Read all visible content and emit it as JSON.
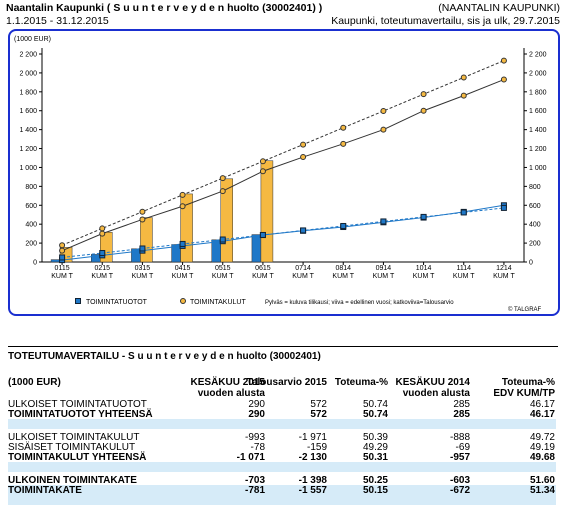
{
  "header": {
    "title": "Naantalin Kaupunki ( S u u n  t e r v e y d e n huolto (30002401) )",
    "org": "(NAANTALIN KAUPUNKI)",
    "period": "1.1.2015 - 31.12.2015",
    "report": "Kaupunki, toteutumavertailu, sis ja ulk, 29.7.2015"
  },
  "chart_data": {
    "type": "bar",
    "y_label": "(1000 EUR)",
    "categories": [
      "0115\nKUM T",
      "0215\nKUM T",
      "0315\nKUM T",
      "0415\nKUM T",
      "0515\nKUM T",
      "0615\nKUM T",
      "0714\nKUM T",
      "0814\nKUM T",
      "0914\nKUM T",
      "1014\nKUM T",
      "1114\nKUM T",
      "1214\nKUM T"
    ],
    "ylim": [
      0,
      2200
    ],
    "yticks": [
      0,
      200,
      400,
      600,
      800,
      {
        "value": 1000,
        "label": "1 000"
      },
      {
        "value": 1200,
        "label": "1 200"
      },
      {
        "value": 1400,
        "label": "1 400"
      },
      {
        "value": 1600,
        "label": "1 600"
      },
      {
        "value": 1800,
        "label": "1 800"
      },
      {
        "value": 2000,
        "label": "2 000"
      },
      {
        "value": 2200,
        "label": "2 200"
      }
    ],
    "series": [
      {
        "name": "TOIMINTATUOTOT",
        "type": "bar",
        "color": "#1f78c8",
        "marker": "square",
        "values": [
          25,
          80,
          140,
          185,
          235,
          290,
          null,
          null,
          null,
          null,
          null,
          null
        ]
      },
      {
        "name": "TOIMINTAKULUT",
        "type": "bar",
        "color": "#f5b942",
        "marker": "circle",
        "values": [
          155,
          315,
          470,
          720,
          880,
          1071,
          null,
          null,
          null,
          null,
          null,
          null
        ]
      },
      {
        "type": "line",
        "color": "#1f78c8",
        "marker": "square",
        "dash": false,
        "values": [
          20,
          70,
          120,
          170,
          220,
          285,
          330,
          370,
          420,
          470,
          530,
          600
        ]
      },
      {
        "type": "line",
        "color": "#333333",
        "marker": "circle",
        "dash": false,
        "values": [
          120,
          300,
          450,
          590,
          750,
          960,
          1110,
          1250,
          1400,
          1600,
          1760,
          1930
        ]
      },
      {
        "type": "line",
        "color": "#1f78c8",
        "marker": "square",
        "dash": true,
        "values": [
          48,
          95,
          143,
          191,
          238,
          286,
          334,
          381,
          429,
          477,
          524,
          572
        ]
      },
      {
        "type": "line",
        "color": "#333333",
        "marker": "circle",
        "dash": true,
        "values": [
          177,
          355,
          532,
          710,
          887,
          1065,
          1242,
          1420,
          1597,
          1775,
          1952,
          2130
        ]
      }
    ],
    "note": "Pylväs = kuluva tilikausi; viiva = edellinen vuosi; katkoviiva=Talousarvio",
    "credit": "© TALGRAF"
  },
  "table": {
    "title": "TOTEUTUMAVERTAILU - S u u n  t e r v e y d e n huolto (30002401)",
    "columns": [
      "(1000 EUR)",
      "KESÄKUU 2015\nvuoden alusta",
      "Talousarvio 2015",
      "Toteuma-%",
      "KESÄKUU 2014\nvuoden alusta",
      "Toteuma-%\nEDV KUM/TP"
    ],
    "groups": [
      [
        {
          "cells": [
            "ULKOISET TOIMINTATUOTOT",
            "290",
            "572",
            "50.74",
            "285",
            "46.17"
          ],
          "highlight": false
        },
        {
          "cells": [
            "TOIMINTATUOTOT YHTEENSÄ",
            "290",
            "572",
            "50.74",
            "285",
            "46.17"
          ],
          "highlight": true
        }
      ],
      [
        {
          "cells": [
            "ULKOISET TOIMINTAKULUT",
            "-993",
            "-1 971",
            "50.39",
            "-888",
            "49.72"
          ],
          "highlight": false
        },
        {
          "cells": [
            "SISÄISET TOIMINTAKULUT",
            "-78",
            "-159",
            "49.29",
            "-69",
            "49.19"
          ],
          "highlight": false
        },
        {
          "cells": [
            "TOIMINTAKULUT YHTEENSÄ",
            "-1 071",
            "-2 130",
            "50.31",
            "-957",
            "49.68"
          ],
          "highlight": true
        }
      ],
      [
        {
          "cells": [
            "ULKOINEN TOIMINTAKATE",
            "-703",
            "-1 398",
            "50.25",
            "-603",
            "51.60"
          ],
          "highlight": true
        },
        {
          "cells": [
            "TOIMINTAKATE",
            "-781",
            "-1 557",
            "50.15",
            "-672",
            "51.34"
          ],
          "highlight": true
        }
      ]
    ]
  }
}
